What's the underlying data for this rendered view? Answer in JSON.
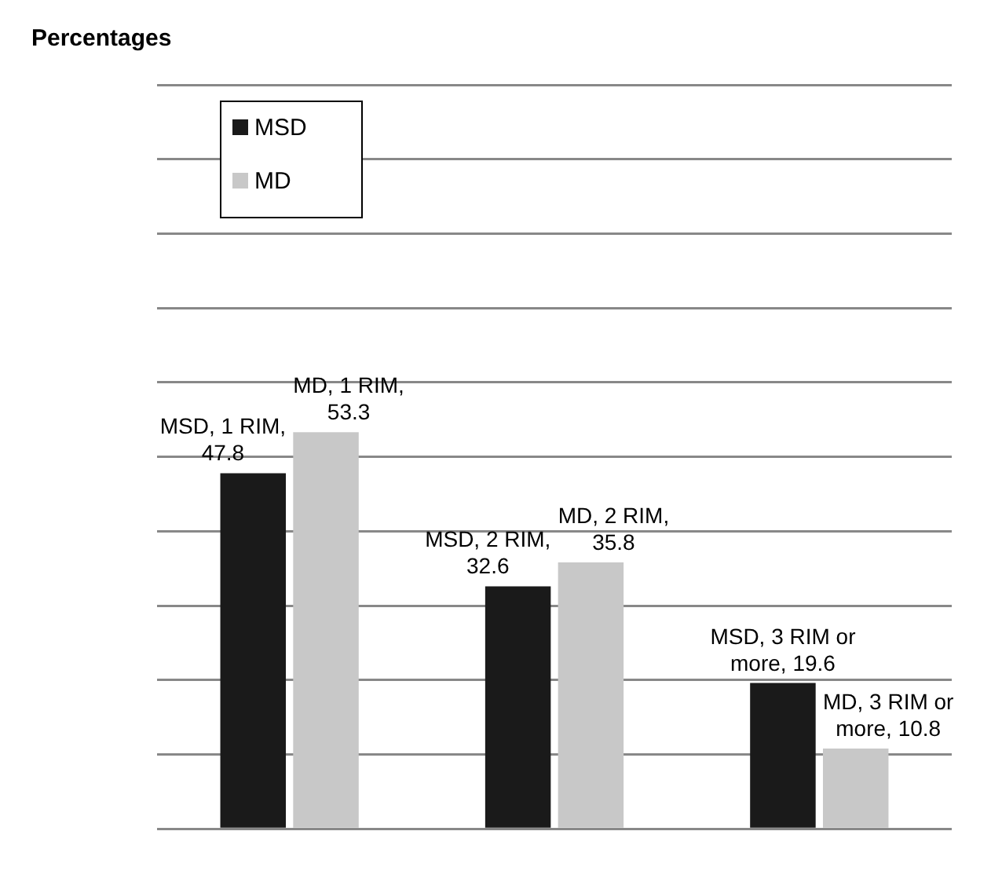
{
  "chart_data": {
    "type": "bar",
    "title": "Percentages",
    "categories": [
      null,
      null,
      null
    ],
    "series": [
      {
        "name": "MSD",
        "color": "#1a1a1a",
        "values": [
          47.8,
          32.6,
          19.6
        ],
        "value_labels": [
          "MSD, 1 RIM, 47.8",
          "MSD, 2 RIM, 32.6",
          "MSD, 3 RIM or more, 19.6"
        ]
      },
      {
        "name": "MD",
        "color": "#c8c8c8",
        "values": [
          53.3,
          35.8,
          10.8
        ],
        "value_labels": [
          "MD, 1 RIM, 53.3",
          "MD, 2 RIM, 35.8",
          "MD, 3 RIM or more, 10.8"
        ]
      }
    ],
    "ylim": [
      0,
      100
    ],
    "yticks": [
      {
        "value": 0,
        "label": null
      },
      {
        "value": 10,
        "label": null
      },
      {
        "value": 20,
        "label": null
      },
      {
        "value": 30,
        "label": null
      },
      {
        "value": 40,
        "label": null
      },
      {
        "value": 50,
        "label": null
      },
      {
        "value": 60,
        "label": null
      },
      {
        "value": 70,
        "label": null
      },
      {
        "value": 80,
        "label": null
      },
      {
        "value": 90,
        "label": null
      },
      {
        "value": 100,
        "label": null
      }
    ],
    "grid": "y",
    "legend": "top left"
  }
}
